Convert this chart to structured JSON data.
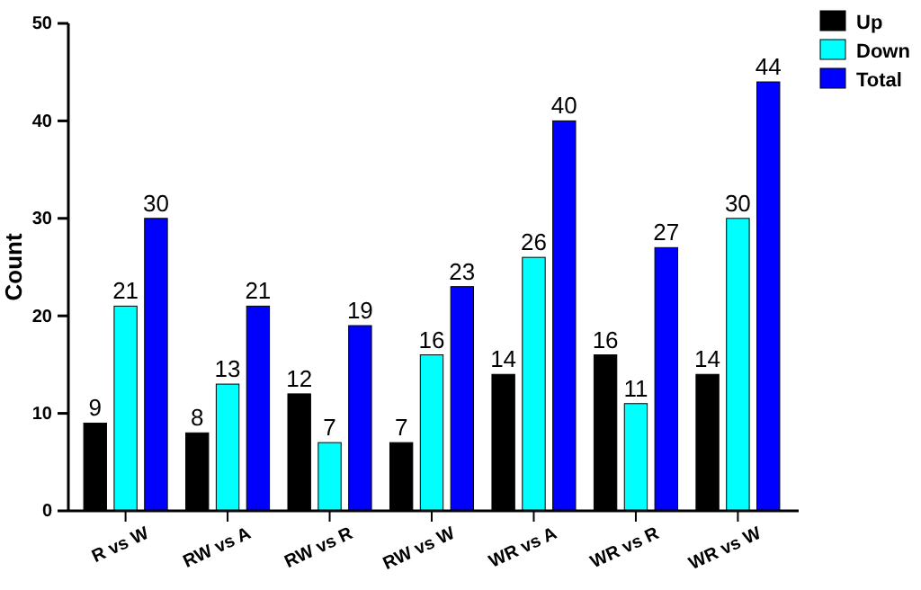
{
  "chart_data": {
    "type": "bar",
    "ylabel": "Count",
    "categories": [
      "R vs W",
      "RW vs A",
      "RW vs R",
      "RW vs W",
      "WR vs A",
      "WR vs R",
      "WR vs W"
    ],
    "series": [
      {
        "name": "Up",
        "color": "#000000",
        "values": [
          9,
          8,
          12,
          7,
          14,
          16,
          14
        ]
      },
      {
        "name": "Down",
        "color": "#00ffff",
        "values": [
          21,
          13,
          7,
          16,
          26,
          11,
          30
        ]
      },
      {
        "name": "Total",
        "color": "#0000ff",
        "values": [
          30,
          21,
          19,
          23,
          40,
          27,
          44
        ]
      }
    ],
    "ylim": [
      0,
      50
    ],
    "yticks": [
      0,
      10,
      20,
      30,
      40,
      50
    ],
    "data_labels": true,
    "legend": "top right",
    "grid": false
  }
}
